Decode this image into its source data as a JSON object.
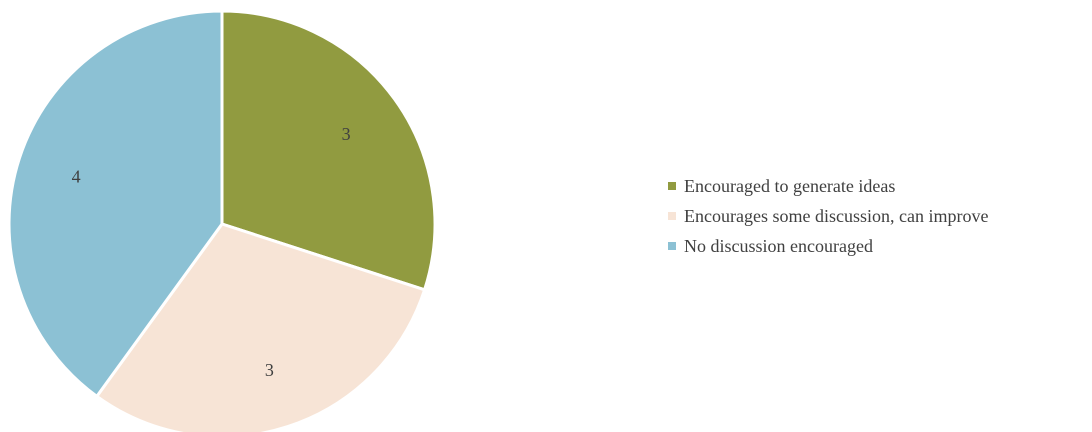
{
  "chart_data": {
    "type": "pie",
    "title": "",
    "slices": [
      {
        "label": "Encouraged to generate ideas",
        "value": 3,
        "color": "#919b40"
      },
      {
        "label": "Encourages some discussion, can improve",
        "value": 3,
        "color": "#f7e4d6"
      },
      {
        "label": "No discussion encouraged",
        "value": 4,
        "color": "#8cc1d4"
      }
    ],
    "data_labels": [
      "3",
      "3",
      "4"
    ],
    "legend_position": "right",
    "start_angle": "top",
    "direction": "clockwise"
  }
}
